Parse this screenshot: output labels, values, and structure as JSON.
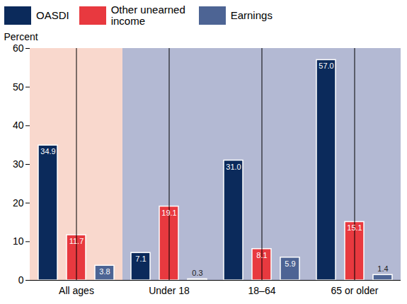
{
  "chart_data": {
    "type": "bar",
    "categories": [
      "All ages",
      "Under 18",
      "18–64",
      "65 or older"
    ],
    "series": [
      {
        "name": "OASDI",
        "color": "#0b2a5b",
        "values": [
          34.9,
          7.1,
          31.0,
          57.0
        ],
        "value_labels": [
          "34.9",
          "7.1",
          "31.0",
          "57.0"
        ]
      },
      {
        "name": "Other unearned income",
        "color": "#e8393f",
        "values": [
          11.7,
          19.1,
          8.1,
          15.1
        ],
        "value_labels": [
          "11.7",
          "19.1",
          "8.1",
          "15.1"
        ]
      },
      {
        "name": "Earnings",
        "color": "#4d6494",
        "values": [
          3.8,
          0.3,
          5.9,
          1.4
        ],
        "value_labels": [
          "3.8",
          "0.3",
          "5.9",
          "1.4"
        ]
      }
    ],
    "y_label": "Percent",
    "ylim": [
      0,
      60
    ],
    "yticks": [
      0,
      10,
      20,
      30,
      40,
      50,
      60
    ],
    "grid": false,
    "legend": "top",
    "data_labels": true
  }
}
